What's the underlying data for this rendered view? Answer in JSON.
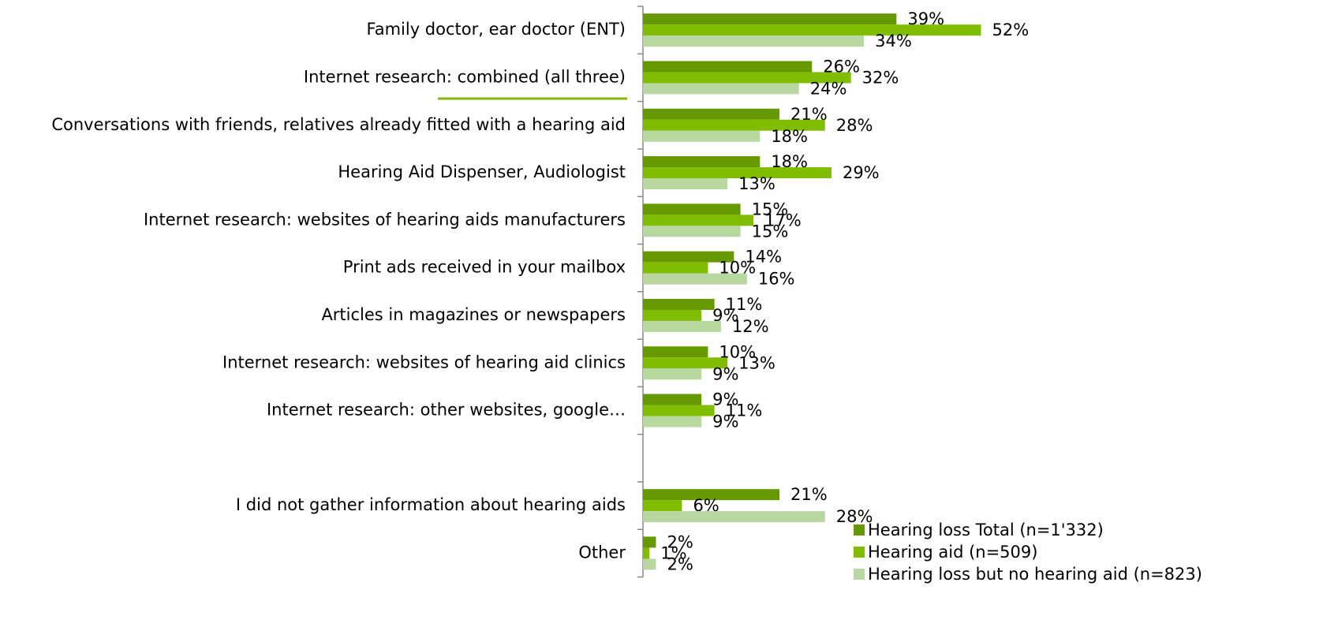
{
  "chart_data": {
    "type": "bar",
    "orientation": "horizontal",
    "categories": [
      "Family doctor, ear doctor (ENT)",
      "Internet research: combined (all three)",
      "Conversations with friends, relatives already fitted with a hearing aid",
      "Hearing Aid Dispenser, Audiologist",
      "Internet research: websites of hearing aids manufacturers",
      "Print ads received in your mailbox",
      "Articles in magazines or newspapers",
      "Internet research: websites of hearing aid clinics",
      "Internet research: other websites, google…",
      null,
      "I did not gather information about hearing aids",
      "Other"
    ],
    "series": [
      {
        "name": "Hearing loss Total (n=1'332)",
        "color": "#669900",
        "values": [
          39,
          26,
          21,
          18,
          15,
          14,
          11,
          10,
          9,
          null,
          21,
          2
        ],
        "value_labels": [
          "39%",
          "26%",
          "21%",
          "18%",
          "15%",
          "14%",
          "11%",
          "10%",
          "9%",
          null,
          "21%",
          "2%"
        ]
      },
      {
        "name": "Hearing aid (n=509)",
        "color": "#80bc00",
        "values": [
          52,
          32,
          28,
          29,
          17,
          10,
          9,
          13,
          11,
          null,
          6,
          1
        ],
        "value_labels": [
          "52%",
          "32%",
          "28%",
          "29%",
          "17%",
          "10%",
          "9%",
          "13%",
          "11%",
          null,
          "6%",
          "1%"
        ]
      },
      {
        "name": "Hearing loss but no hearing aid (n=823)",
        "color": "#b9d7a0",
        "values": [
          34,
          24,
          18,
          13,
          15,
          16,
          12,
          9,
          9,
          null,
          28,
          2
        ],
        "value_labels": [
          "34%",
          "24%",
          "18%",
          "13%",
          "15%",
          "16%",
          "12%",
          "9%",
          "9%",
          null,
          "28%",
          "2%"
        ]
      }
    ],
    "xlim": [
      0,
      100
    ],
    "legend": "lower right"
  }
}
